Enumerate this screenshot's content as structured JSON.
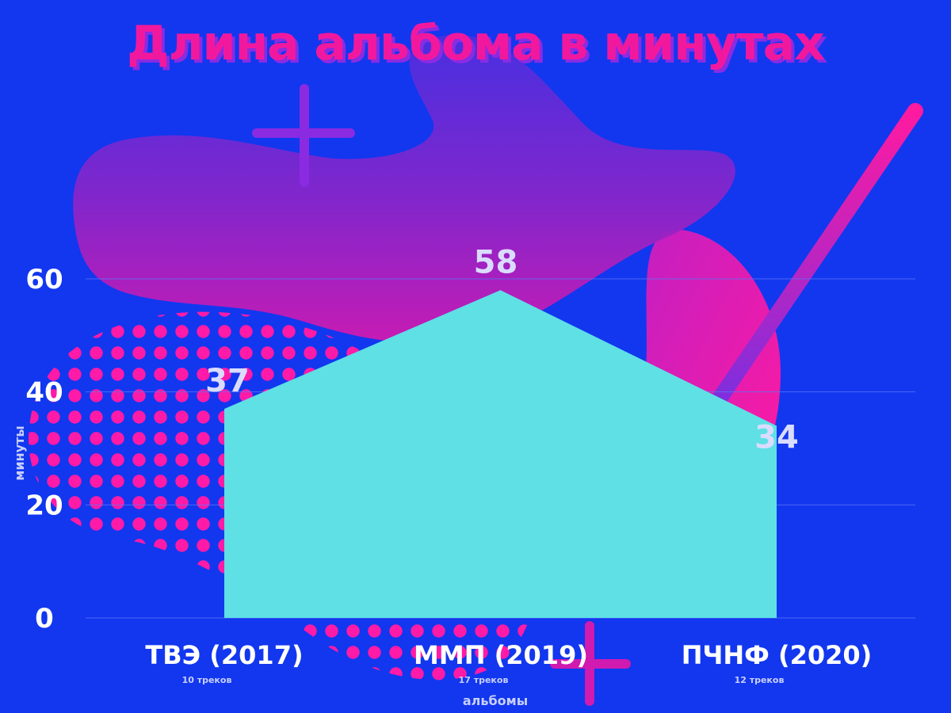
{
  "chart_data": {
    "type": "area",
    "title": "Длина альбома в минутах",
    "xlabel": "альбомы",
    "ylabel": "минуты",
    "categories": [
      "ТВЭ (2017)",
      "ММП (2019)",
      "ПЧНФ (2020)"
    ],
    "category_notes": [
      "10 треков",
      "17 треков",
      "12 треков"
    ],
    "series": [
      {
        "values": [
          37,
          58,
          34
        ]
      }
    ],
    "data_labels": [
      "37",
      "58",
      "34"
    ],
    "yticks": [
      0,
      20,
      40,
      60
    ],
    "ylim": [
      0,
      60
    ],
    "grid": true,
    "legend": "none"
  },
  "colors": {
    "background": "#1237ef",
    "area_fill": "#5ee0e5",
    "title": "#f2189e",
    "gridline": "#5c72f5",
    "decor_purple": "#8a2be2",
    "decor_pink": "#f2189e"
  }
}
